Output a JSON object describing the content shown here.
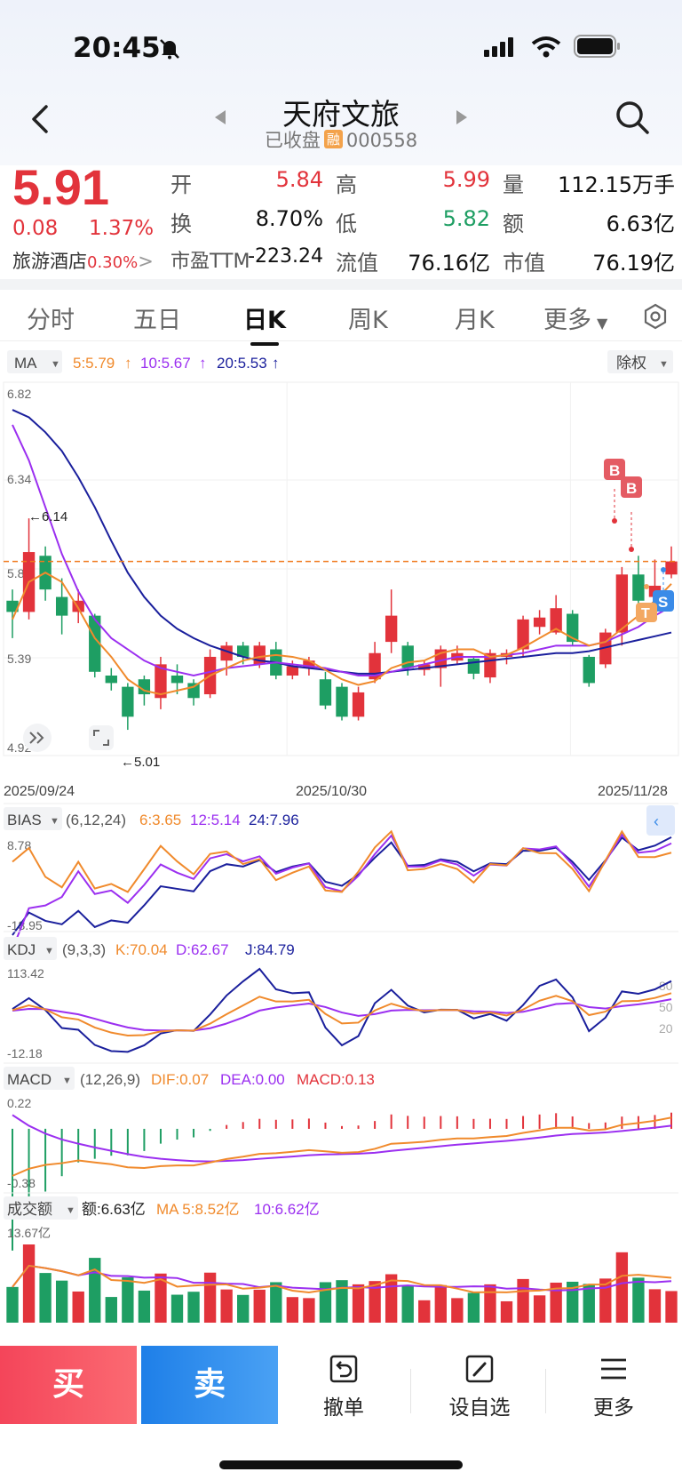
{
  "status": {
    "time": "20:45"
  },
  "header": {
    "title": "天府文旅",
    "market_state": "已收盘",
    "rong_badge": "融",
    "code": "000558"
  },
  "quote": {
    "price": "5.91",
    "change": "0.08",
    "change_pct": "1.37%",
    "industry": "旅游酒店",
    "industry_pct": "0.30%",
    "fields": [
      {
        "label": "开",
        "value": "5.84",
        "color": "red"
      },
      {
        "label": "高",
        "value": "5.99",
        "color": "red"
      },
      {
        "label": "量",
        "value": "112.15万手",
        "color": "black"
      },
      {
        "label": "换",
        "value": "8.70%",
        "color": "black"
      },
      {
        "label": "低",
        "value": "5.82",
        "color": "green"
      },
      {
        "label": "额",
        "value": "6.63亿",
        "color": "black"
      },
      {
        "label": "市盈TTM",
        "value": "-223.24",
        "color": "black"
      },
      {
        "label": "流值",
        "value": "76.16亿",
        "color": "black"
      },
      {
        "label": "市值",
        "value": "76.19亿",
        "color": "black"
      }
    ]
  },
  "tabs": [
    "分时",
    "五日",
    "日K",
    "周K",
    "月K",
    "更多"
  ],
  "active_tab": "日K",
  "ma_bar": {
    "selector": "MA",
    "ma5": "5:5.79",
    "ma10": "10:5.67",
    "ma20": "20:5.53",
    "adjust": "除权"
  },
  "kline": {
    "y_labels": [
      "6.82",
      "6.34",
      "5.87",
      "5.39",
      "4.92"
    ],
    "high_note": "6.14",
    "low_note": "5.01",
    "dates": [
      "2025/09/24",
      "2025/10/30",
      "2025/11/28"
    ],
    "colors": {
      "up": "#e2333b",
      "down": "#1e9e63",
      "ma5": "#f08a2c",
      "ma10": "#9b2ff0",
      "ma20": "#1a1f9c"
    }
  },
  "bias": {
    "name": "BIAS",
    "params": "(6,12,24)",
    "v6": "6:3.65",
    "v12": "12:5.14",
    "v24": "24:7.96",
    "top": "8.78",
    "bottom": "-18.95"
  },
  "kdj": {
    "name": "KDJ",
    "params": "(9,3,3)",
    "k": "K:70.04",
    "d": "D:62.67",
    "j": "J:84.79",
    "top": "113.42",
    "bottom": "-12.18",
    "levels": [
      "80",
      "50",
      "20"
    ]
  },
  "macd": {
    "name": "MACD",
    "params": "(12,26,9)",
    "dif": "DIF:0.07",
    "dea": "DEA:0.00",
    "macd": "MACD:0.13",
    "top": "0.22",
    "bottom": "-0.38"
  },
  "volume": {
    "name": "成交额",
    "amount": "额:6.63亿",
    "ma5": "MA 5:8.52亿",
    "ma10": "10:6.62亿",
    "top": "13.67亿"
  },
  "bottom_bar": {
    "buy": "买",
    "sell": "卖",
    "cancel": "撤单",
    "watch": "设自选",
    "more": "更多"
  },
  "chart_data": {
    "type": "candlestick",
    "title": "天府文旅 000558 日K",
    "x_start": "2025/09/24",
    "x_mid": "2025/10/30",
    "x_end": "2025/11/28",
    "ylim": [
      4.92,
      6.82
    ],
    "candles": [
      [
        5.7,
        5.64,
        5.76,
        5.5
      ],
      [
        5.64,
        5.96,
        6.14,
        5.6
      ],
      [
        5.94,
        5.76,
        5.99,
        5.7
      ],
      [
        5.72,
        5.62,
        5.82,
        5.52
      ],
      [
        5.64,
        5.7,
        5.76,
        5.58
      ],
      [
        5.62,
        5.32,
        5.63,
        5.29
      ],
      [
        5.3,
        5.26,
        5.34,
        5.22
      ],
      [
        5.24,
        5.08,
        5.26,
        5.01
      ],
      [
        5.28,
        5.2,
        5.3,
        5.14
      ],
      [
        5.18,
        5.36,
        5.4,
        5.12
      ],
      [
        5.3,
        5.26,
        5.36,
        5.2
      ],
      [
        5.26,
        5.18,
        5.28,
        5.14
      ],
      [
        5.2,
        5.4,
        5.44,
        5.18
      ],
      [
        5.38,
        5.46,
        5.48,
        5.3
      ],
      [
        5.46,
        5.4,
        5.48,
        5.36
      ],
      [
        5.36,
        5.46,
        5.48,
        5.34
      ],
      [
        5.44,
        5.3,
        5.48,
        5.28
      ],
      [
        5.3,
        5.35,
        5.38,
        5.28
      ],
      [
        5.34,
        5.38,
        5.4,
        5.3
      ],
      [
        5.28,
        5.14,
        5.32,
        5.12
      ],
      [
        5.24,
        5.08,
        5.26,
        5.06
      ],
      [
        5.08,
        5.21,
        5.24,
        5.06
      ],
      [
        5.28,
        5.42,
        5.48,
        5.26
      ],
      [
        5.48,
        5.62,
        5.76,
        5.42
      ],
      [
        5.46,
        5.34,
        5.48,
        5.3
      ],
      [
        5.33,
        5.36,
        5.38,
        5.3
      ],
      [
        5.34,
        5.44,
        5.46,
        5.24
      ],
      [
        5.38,
        5.42,
        5.46,
        5.36
      ],
      [
        5.39,
        5.31,
        5.4,
        5.28
      ],
      [
        5.29,
        5.42,
        5.44,
        5.26
      ],
      [
        5.4,
        5.42,
        5.44,
        5.36
      ],
      [
        5.44,
        5.6,
        5.62,
        5.4
      ],
      [
        5.56,
        5.61,
        5.65,
        5.52
      ],
      [
        5.53,
        5.66,
        5.73,
        5.52
      ],
      [
        5.63,
        5.48,
        5.65,
        5.46
      ],
      [
        5.4,
        5.26,
        5.41,
        5.24
      ],
      [
        5.36,
        5.53,
        5.55,
        5.34
      ],
      [
        5.53,
        5.84,
        5.88,
        5.46
      ],
      [
        5.84,
        5.7,
        5.94,
        5.66
      ],
      [
        5.72,
        5.78,
        5.92,
        5.7
      ],
      [
        5.84,
        5.91,
        5.99,
        5.82
      ]
    ],
    "ma5": [
      5.6,
      5.8,
      5.85,
      5.8,
      5.66,
      5.5,
      5.4,
      5.28,
      5.22,
      5.2,
      5.22,
      5.24,
      5.3,
      5.34,
      5.38,
      5.4,
      5.41,
      5.4,
      5.38,
      5.33,
      5.28,
      5.25,
      5.27,
      5.34,
      5.37,
      5.38,
      5.42,
      5.44,
      5.44,
      5.4,
      5.41,
      5.45,
      5.5,
      5.55,
      5.5,
      5.46,
      5.48,
      5.55,
      5.62,
      5.7,
      5.79
    ],
    "ma10": [
      6.64,
      6.45,
      6.2,
      5.95,
      5.75,
      5.6,
      5.5,
      5.44,
      5.38,
      5.34,
      5.32,
      5.3,
      5.32,
      5.34,
      5.35,
      5.36,
      5.37,
      5.36,
      5.35,
      5.34,
      5.32,
      5.3,
      5.3,
      5.32,
      5.34,
      5.36,
      5.38,
      5.4,
      5.4,
      5.4,
      5.41,
      5.42,
      5.44,
      5.46,
      5.46,
      5.46,
      5.48,
      5.52,
      5.56,
      5.62,
      5.67
    ],
    "ma20": [
      6.72,
      6.68,
      6.6,
      6.5,
      6.36,
      6.2,
      6.02,
      5.85,
      5.72,
      5.62,
      5.55,
      5.5,
      5.46,
      5.43,
      5.4,
      5.38,
      5.37,
      5.35,
      5.34,
      5.33,
      5.32,
      5.31,
      5.31,
      5.32,
      5.33,
      5.34,
      5.35,
      5.36,
      5.37,
      5.38,
      5.39,
      5.4,
      5.41,
      5.42,
      5.42,
      5.43,
      5.45,
      5.47,
      5.49,
      5.51,
      5.53
    ]
  }
}
